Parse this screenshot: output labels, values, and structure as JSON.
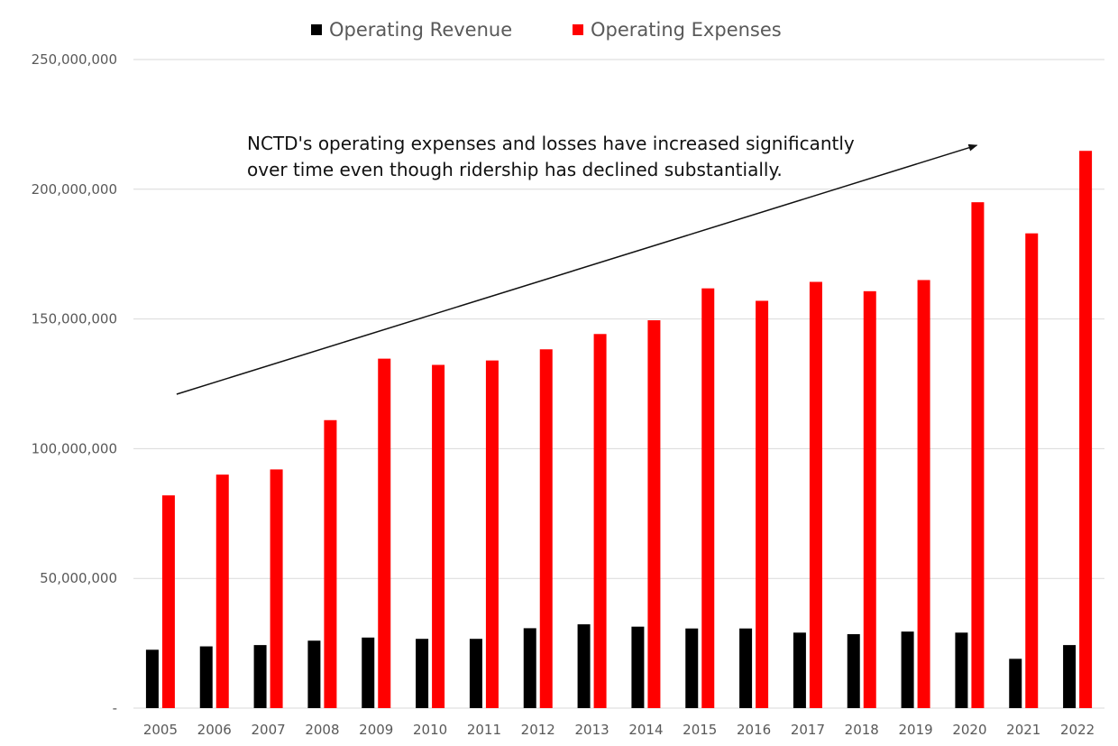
{
  "chart_data": {
    "type": "bar",
    "title": "",
    "xlabel": "",
    "ylabel": "",
    "ylim": [
      0,
      250000000
    ],
    "grid": true,
    "legend_position": "top-center",
    "categories": [
      "2005",
      "2006",
      "2007",
      "2008",
      "2009",
      "2010",
      "2011",
      "2012",
      "2013",
      "2014",
      "2015",
      "2016",
      "2017",
      "2018",
      "2019",
      "2020",
      "2021",
      "2022"
    ],
    "series": [
      {
        "name": "Operating Revenue",
        "color": "#000000",
        "values": [
          22500000,
          23800000,
          24300000,
          26000000,
          27200000,
          26700000,
          26700000,
          30800000,
          32300000,
          31400000,
          30700000,
          30700000,
          29100000,
          28500000,
          29500000,
          29100000,
          19000000,
          24300000
        ]
      },
      {
        "name": "Operating Expenses",
        "color": "#ff0000",
        "values": [
          82000000,
          90000000,
          92000000,
          111000000,
          134700000,
          132300000,
          134000000,
          138300000,
          144200000,
          149500000,
          161800000,
          157000000,
          164300000,
          160700000,
          165000000,
          195000000,
          183000000,
          214800000
        ]
      }
    ],
    "y_ticks": [
      {
        "value": 0,
        "label": "-"
      },
      {
        "value": 50000000,
        "label": "50,000,000"
      },
      {
        "value": 100000000,
        "label": "100,000,000"
      },
      {
        "value": 150000000,
        "label": "150,000,000"
      },
      {
        "value": 200000000,
        "label": "200,000,000"
      },
      {
        "value": 250000000,
        "label": "250,000,000"
      }
    ],
    "annotation": {
      "lines": [
        "NCTD's operating expenses and losses have increased significantly",
        "over time even though ridership has declined substantially."
      ],
      "arrow": {
        "from": {
          "category": "2005",
          "value": 121000000
        },
        "to": {
          "category": "2020",
          "value": 218000000
        }
      }
    }
  }
}
